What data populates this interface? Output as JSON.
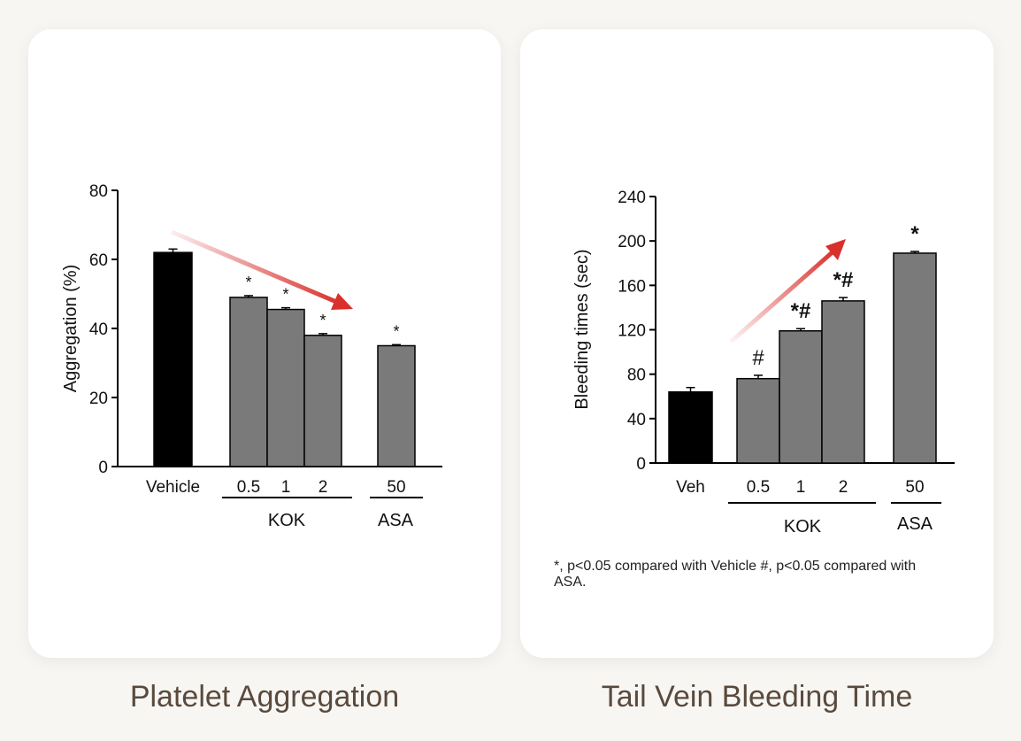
{
  "panels": {
    "left_title": "Platelet Aggregation",
    "right_title": "Tail Vein Bleeding Time",
    "footnote": "*, p<0.05 compared with Vehicle #, p<0.05 compared with ASA."
  },
  "colors": {
    "control_bar": "#000000",
    "treatment_bar": "#7a7a7a",
    "arrow": "#d9302c"
  },
  "chart_data": [
    {
      "type": "bar",
      "ylabel": "Aggregation (%)",
      "ylim": [
        0,
        80
      ],
      "yticks": [
        0,
        20,
        40,
        60,
        80
      ],
      "categories": [
        "Vehicle",
        "0.5",
        "1",
        "2",
        "50"
      ],
      "values": [
        62,
        49,
        45.5,
        38,
        35
      ],
      "errors": [
        1,
        0.5,
        0.5,
        0.5,
        0.3
      ],
      "marks": [
        "",
        "*",
        "*",
        "*",
        "*"
      ],
      "groups": [
        {
          "label": "KOK",
          "members": [
            "0.5",
            "1",
            "2"
          ]
        },
        {
          "label": "ASA",
          "members": [
            "50"
          ]
        }
      ],
      "trend_arrow": "decreasing"
    },
    {
      "type": "bar",
      "ylabel": "Bleeding times (sec)",
      "ylim": [
        0,
        240
      ],
      "yticks": [
        0,
        40,
        80,
        120,
        160,
        200,
        240
      ],
      "categories": [
        "Veh",
        "0.5",
        "1",
        "2",
        "50"
      ],
      "values": [
        64,
        76,
        119,
        146,
        189
      ],
      "errors": [
        4,
        3,
        2,
        3,
        1.5
      ],
      "marks": [
        "",
        "#",
        "*#",
        "*#",
        "*"
      ],
      "groups": [
        {
          "label": "KOK",
          "members": [
            "0.5",
            "1",
            "2"
          ]
        },
        {
          "label": "ASA",
          "members": [
            "50"
          ]
        }
      ],
      "trend_arrow": "increasing"
    }
  ]
}
